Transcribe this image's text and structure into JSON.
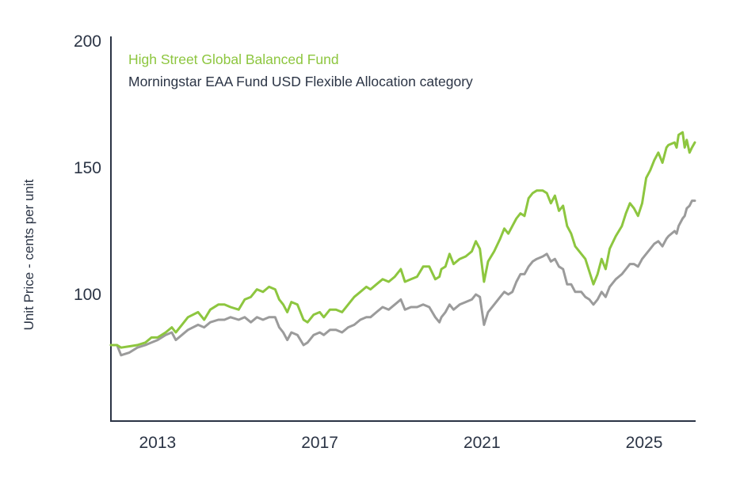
{
  "colors": {
    "fund": "#8dc63f",
    "category": "#9b9b9b",
    "axis": "#2b3445",
    "text": "#2b3445"
  },
  "chart_data": {
    "type": "line",
    "title": "",
    "xlabel": "",
    "ylabel": "Unit Price - cents per unit",
    "xlim": [
      2011.85,
      2026.25
    ],
    "ylim": [
      50,
      200
    ],
    "x_ticks": [
      2013,
      2017,
      2021,
      2025
    ],
    "x_tick_labels": [
      "2013",
      "2017",
      "2021",
      "2025"
    ],
    "y_ticks": [
      100,
      150,
      200
    ],
    "y_tick_labels": [
      "100",
      "150",
      "200"
    ],
    "grid": false,
    "legend": "top-left",
    "series": [
      {
        "name": "High Street Global Balanced Fund",
        "color": "#8dc63f",
        "points": [
          [
            2011.85,
            80
          ],
          [
            2012.0,
            80
          ],
          [
            2012.1,
            79
          ],
          [
            2012.3,
            79.5
          ],
          [
            2012.5,
            80
          ],
          [
            2012.7,
            81
          ],
          [
            2012.85,
            83
          ],
          [
            2013.0,
            83
          ],
          [
            2013.2,
            85
          ],
          [
            2013.35,
            87
          ],
          [
            2013.45,
            85
          ],
          [
            2013.6,
            88
          ],
          [
            2013.75,
            91
          ],
          [
            2014.0,
            93
          ],
          [
            2014.15,
            90
          ],
          [
            2014.3,
            94
          ],
          [
            2014.5,
            96
          ],
          [
            2014.65,
            96
          ],
          [
            2014.8,
            95
          ],
          [
            2015.0,
            94
          ],
          [
            2015.15,
            98
          ],
          [
            2015.3,
            99
          ],
          [
            2015.45,
            102
          ],
          [
            2015.6,
            101
          ],
          [
            2015.75,
            103
          ],
          [
            2015.9,
            102
          ],
          [
            2016.0,
            98
          ],
          [
            2016.1,
            96
          ],
          [
            2016.2,
            93
          ],
          [
            2016.3,
            97
          ],
          [
            2016.45,
            96
          ],
          [
            2016.6,
            90
          ],
          [
            2016.7,
            89
          ],
          [
            2016.85,
            92
          ],
          [
            2017.0,
            93
          ],
          [
            2017.1,
            91
          ],
          [
            2017.25,
            94
          ],
          [
            2017.4,
            94
          ],
          [
            2017.55,
            93
          ],
          [
            2017.7,
            96
          ],
          [
            2017.85,
            99
          ],
          [
            2018.0,
            101
          ],
          [
            2018.15,
            103
          ],
          [
            2018.25,
            102
          ],
          [
            2018.4,
            104
          ],
          [
            2018.55,
            106
          ],
          [
            2018.7,
            105
          ],
          [
            2018.85,
            107
          ],
          [
            2019.0,
            110
          ],
          [
            2019.1,
            105
          ],
          [
            2019.25,
            106
          ],
          [
            2019.4,
            107
          ],
          [
            2019.55,
            111
          ],
          [
            2019.7,
            111
          ],
          [
            2019.85,
            106
          ],
          [
            2019.95,
            107
          ],
          [
            2020.0,
            110
          ],
          [
            2020.1,
            111
          ],
          [
            2020.2,
            116
          ],
          [
            2020.3,
            112
          ],
          [
            2020.45,
            114
          ],
          [
            2020.6,
            115
          ],
          [
            2020.75,
            117
          ],
          [
            2020.85,
            121
          ],
          [
            2020.95,
            118
          ],
          [
            2021.05,
            105
          ],
          [
            2021.15,
            113
          ],
          [
            2021.3,
            117
          ],
          [
            2021.45,
            122
          ],
          [
            2021.55,
            126
          ],
          [
            2021.65,
            124
          ],
          [
            2021.75,
            127
          ],
          [
            2021.85,
            130
          ],
          [
            2021.95,
            132
          ],
          [
            2022.05,
            131
          ],
          [
            2022.15,
            138
          ],
          [
            2022.25,
            140
          ],
          [
            2022.35,
            141
          ],
          [
            2022.5,
            141
          ],
          [
            2022.6,
            140
          ],
          [
            2022.7,
            136
          ],
          [
            2022.8,
            139
          ],
          [
            2022.9,
            133
          ],
          [
            2023.0,
            135
          ],
          [
            2023.1,
            127
          ],
          [
            2023.2,
            124
          ],
          [
            2023.3,
            119
          ],
          [
            2023.45,
            116
          ],
          [
            2023.55,
            114
          ],
          [
            2023.65,
            109
          ],
          [
            2023.75,
            104
          ],
          [
            2023.85,
            108
          ],
          [
            2023.95,
            114
          ],
          [
            2024.05,
            110
          ],
          [
            2024.15,
            118
          ],
          [
            2024.3,
            123
          ],
          [
            2024.45,
            127
          ],
          [
            2024.55,
            132
          ],
          [
            2024.65,
            136
          ],
          [
            2024.75,
            134
          ],
          [
            2024.85,
            131
          ],
          [
            2024.95,
            136
          ],
          [
            2025.05,
            146
          ],
          [
            2025.15,
            149
          ],
          [
            2025.25,
            153
          ],
          [
            2025.35,
            156
          ],
          [
            2025.45,
            152
          ],
          [
            2025.55,
            158
          ],
          [
            2025.6,
            159
          ],
          [
            2025.75,
            160
          ],
          [
            2025.8,
            158
          ],
          [
            2025.85,
            163
          ],
          [
            2025.95,
            164
          ],
          [
            2026.0,
            158
          ],
          [
            2026.05,
            161
          ],
          [
            2026.12,
            156
          ],
          [
            2026.18,
            158
          ],
          [
            2026.25,
            160
          ]
        ]
      },
      {
        "name": "Morningstar EAA Fund USD Flexible Allocation category",
        "color": "#9b9b9b",
        "points": [
          [
            2011.85,
            80
          ],
          [
            2012.0,
            80
          ],
          [
            2012.1,
            76
          ],
          [
            2012.3,
            77
          ],
          [
            2012.5,
            79
          ],
          [
            2012.7,
            80
          ],
          [
            2012.85,
            81
          ],
          [
            2013.0,
            82
          ],
          [
            2013.2,
            84
          ],
          [
            2013.35,
            85
          ],
          [
            2013.45,
            82
          ],
          [
            2013.6,
            84
          ],
          [
            2013.75,
            86
          ],
          [
            2014.0,
            88
          ],
          [
            2014.15,
            87
          ],
          [
            2014.3,
            89
          ],
          [
            2014.5,
            90
          ],
          [
            2014.65,
            90
          ],
          [
            2014.8,
            91
          ],
          [
            2015.0,
            90
          ],
          [
            2015.15,
            91
          ],
          [
            2015.3,
            89
          ],
          [
            2015.45,
            91
          ],
          [
            2015.6,
            90
          ],
          [
            2015.75,
            91
          ],
          [
            2015.9,
            91
          ],
          [
            2016.0,
            87
          ],
          [
            2016.1,
            85
          ],
          [
            2016.2,
            82
          ],
          [
            2016.3,
            85
          ],
          [
            2016.45,
            84
          ],
          [
            2016.6,
            80
          ],
          [
            2016.7,
            81
          ],
          [
            2016.85,
            84
          ],
          [
            2017.0,
            85
          ],
          [
            2017.1,
            84
          ],
          [
            2017.25,
            86
          ],
          [
            2017.4,
            86
          ],
          [
            2017.55,
            85
          ],
          [
            2017.7,
            87
          ],
          [
            2017.85,
            88
          ],
          [
            2018.0,
            90
          ],
          [
            2018.15,
            91
          ],
          [
            2018.25,
            91
          ],
          [
            2018.4,
            93
          ],
          [
            2018.55,
            95
          ],
          [
            2018.7,
            94
          ],
          [
            2018.85,
            96
          ],
          [
            2019.0,
            98
          ],
          [
            2019.1,
            94
          ],
          [
            2019.25,
            95
          ],
          [
            2019.4,
            95
          ],
          [
            2019.55,
            96
          ],
          [
            2019.7,
            95
          ],
          [
            2019.85,
            91
          ],
          [
            2019.95,
            89
          ],
          [
            2020.0,
            91
          ],
          [
            2020.1,
            93
          ],
          [
            2020.2,
            96
          ],
          [
            2020.3,
            94
          ],
          [
            2020.45,
            96
          ],
          [
            2020.6,
            97
          ],
          [
            2020.75,
            98
          ],
          [
            2020.85,
            100
          ],
          [
            2020.95,
            99
          ],
          [
            2021.05,
            88
          ],
          [
            2021.15,
            93
          ],
          [
            2021.3,
            96
          ],
          [
            2021.45,
            99
          ],
          [
            2021.55,
            101
          ],
          [
            2021.65,
            100
          ],
          [
            2021.75,
            101
          ],
          [
            2021.85,
            105
          ],
          [
            2021.95,
            108
          ],
          [
            2022.05,
            108
          ],
          [
            2022.15,
            111
          ],
          [
            2022.25,
            113
          ],
          [
            2022.35,
            114
          ],
          [
            2022.5,
            115
          ],
          [
            2022.6,
            116
          ],
          [
            2022.7,
            113
          ],
          [
            2022.8,
            114
          ],
          [
            2022.9,
            111
          ],
          [
            2023.0,
            110
          ],
          [
            2023.1,
            104
          ],
          [
            2023.2,
            104
          ],
          [
            2023.3,
            101
          ],
          [
            2023.45,
            101
          ],
          [
            2023.55,
            99
          ],
          [
            2023.65,
            98
          ],
          [
            2023.75,
            96
          ],
          [
            2023.85,
            98
          ],
          [
            2023.95,
            101
          ],
          [
            2024.05,
            99
          ],
          [
            2024.15,
            103
          ],
          [
            2024.3,
            106
          ],
          [
            2024.45,
            108
          ],
          [
            2024.55,
            110
          ],
          [
            2024.65,
            112
          ],
          [
            2024.75,
            112
          ],
          [
            2024.85,
            111
          ],
          [
            2024.95,
            114
          ],
          [
            2025.05,
            116
          ],
          [
            2025.15,
            118
          ],
          [
            2025.25,
            120
          ],
          [
            2025.35,
            121
          ],
          [
            2025.45,
            119
          ],
          [
            2025.55,
            122
          ],
          [
            2025.6,
            123
          ],
          [
            2025.75,
            125
          ],
          [
            2025.8,
            124
          ],
          [
            2025.85,
            127
          ],
          [
            2025.95,
            130
          ],
          [
            2026.0,
            131
          ],
          [
            2026.05,
            134
          ],
          [
            2026.12,
            135
          ],
          [
            2026.18,
            137
          ],
          [
            2026.25,
            137
          ]
        ]
      }
    ]
  }
}
